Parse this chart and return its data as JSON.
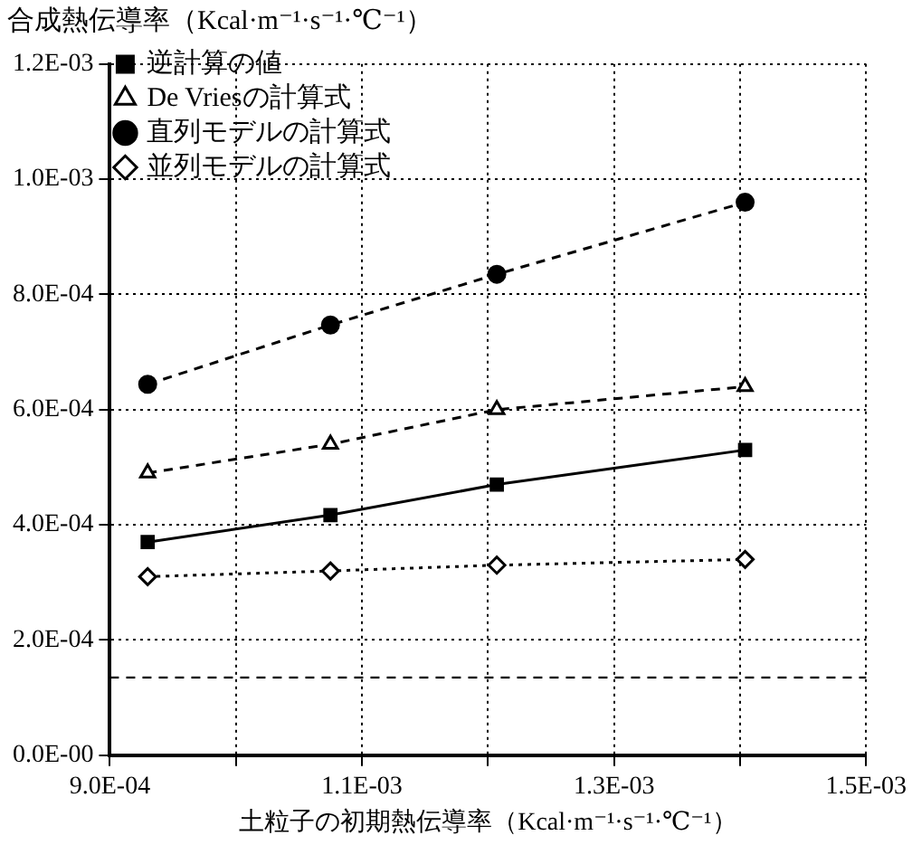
{
  "chart_data": {
    "type": "line",
    "xlabel": "土粒子の初期熱伝導率（Kcal·m⁻¹·s⁻¹·℃⁻¹）",
    "ylabel": "合成熱伝導率（Kcal·m⁻¹·s⁻¹·℃⁻¹）",
    "x": [
      0.00093,
      0.001075,
      0.001207,
      0.001404
    ],
    "series": [
      {
        "name": "逆計算の値",
        "color": "#000000",
        "marker": "square",
        "line_style": "solid",
        "values": [
          0.00037,
          0.000417,
          0.00047,
          0.00053
        ]
      },
      {
        "name": "De Vriesの計算式",
        "color": "#000000",
        "marker": "triangle",
        "line_style": "dashed",
        "values": [
          0.00049,
          0.00054,
          0.0006,
          0.00064
        ]
      },
      {
        "name": "直列モデルの計算式",
        "color": "#000000",
        "marker": "circle",
        "line_style": "dashed",
        "values": [
          0.000644,
          0.000747,
          0.000835,
          0.00096
        ]
      },
      {
        "name": "並列モデルの計算式",
        "color": "#000000",
        "marker": "diamond",
        "line_style": "dotted",
        "values": [
          0.00031,
          0.00032,
          0.00033,
          0.00034
        ]
      }
    ],
    "xlim": [
      0.0009,
      0.0015
    ],
    "xticks": [
      {
        "value": 0.0009,
        "label": "9.0E-04"
      },
      {
        "value": 0.001,
        "label": null
      },
      {
        "value": 0.0011,
        "label": "1.1E-03"
      },
      {
        "value": 0.0012,
        "label": null
      },
      {
        "value": 0.0013,
        "label": "1.3E-03"
      },
      {
        "value": 0.0014,
        "label": null
      },
      {
        "value": 0.0015,
        "label": "1.5E-03"
      }
    ],
    "ylim": [
      0,
      0.0012
    ],
    "yticks": [
      {
        "value": 0,
        "label": "0.0E-00"
      },
      {
        "value": 0.0002,
        "label": "2.0E-04"
      },
      {
        "value": 0.0004,
        "label": "4.0E-04"
      },
      {
        "value": 0.0006,
        "label": "6.0E-04"
      },
      {
        "value": 0.0008,
        "label": "8.0E-04"
      },
      {
        "value": 0.001,
        "label": "1.0E-03"
      },
      {
        "value": 0.0012,
        "label": "1.2E-03"
      }
    ],
    "ref_lines": [
      {
        "axis": "y",
        "value": 0.000135,
        "color": "#000000",
        "line_style": "dashed"
      }
    ],
    "grid": true,
    "legend": "top left"
  }
}
